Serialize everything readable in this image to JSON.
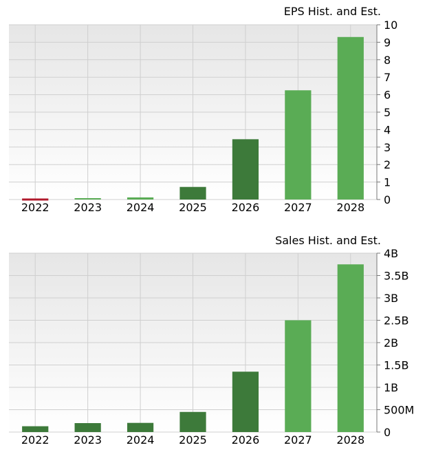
{
  "colors": {
    "hist": "#3d7a3a",
    "est": "#5aac55",
    "negative": "#b0192b",
    "grid": "#cfcfcf",
    "bg_top": "#e6e6e6",
    "bg_bottom": "#ffffff"
  },
  "chart_data": [
    {
      "type": "bar",
      "title": "EPS Hist. and Est.",
      "categories": [
        "2022",
        "2023",
        "2024",
        "2025",
        "2026",
        "2027",
        "2028"
      ],
      "values": [
        -0.05,
        0.06,
        0.12,
        0.72,
        3.45,
        6.25,
        9.3
      ],
      "bar_kind": [
        "negative",
        "est",
        "est",
        "hist",
        "hist",
        "est",
        "est"
      ],
      "ylim": [
        0,
        10
      ],
      "yticks": [
        0,
        1,
        2,
        3,
        4,
        5,
        6,
        7,
        8,
        9,
        10
      ],
      "ytick_labels": [
        "0",
        "1",
        "2",
        "3",
        "4",
        "5",
        "6",
        "7",
        "8",
        "9",
        "10"
      ],
      "grid": true,
      "axis_side": "right"
    },
    {
      "type": "bar",
      "title": "Sales Hist. and Est.",
      "categories": [
        "2022",
        "2023",
        "2024",
        "2025",
        "2026",
        "2027",
        "2028"
      ],
      "values": [
        130000000,
        200000000,
        205000000,
        450000000,
        1350000000,
        2500000000,
        3750000000
      ],
      "bar_kind": [
        "hist",
        "hist",
        "hist",
        "hist",
        "hist",
        "est",
        "est"
      ],
      "ylim": [
        0,
        4000000000
      ],
      "yticks": [
        0,
        500000000,
        1000000000,
        1500000000,
        2000000000,
        2500000000,
        3000000000,
        3500000000,
        4000000000
      ],
      "ytick_labels": [
        "0",
        "500M",
        "1B",
        "1.5B",
        "2B",
        "2.5B",
        "3B",
        "3.5B",
        "4B"
      ],
      "grid": true,
      "axis_side": "right"
    }
  ]
}
